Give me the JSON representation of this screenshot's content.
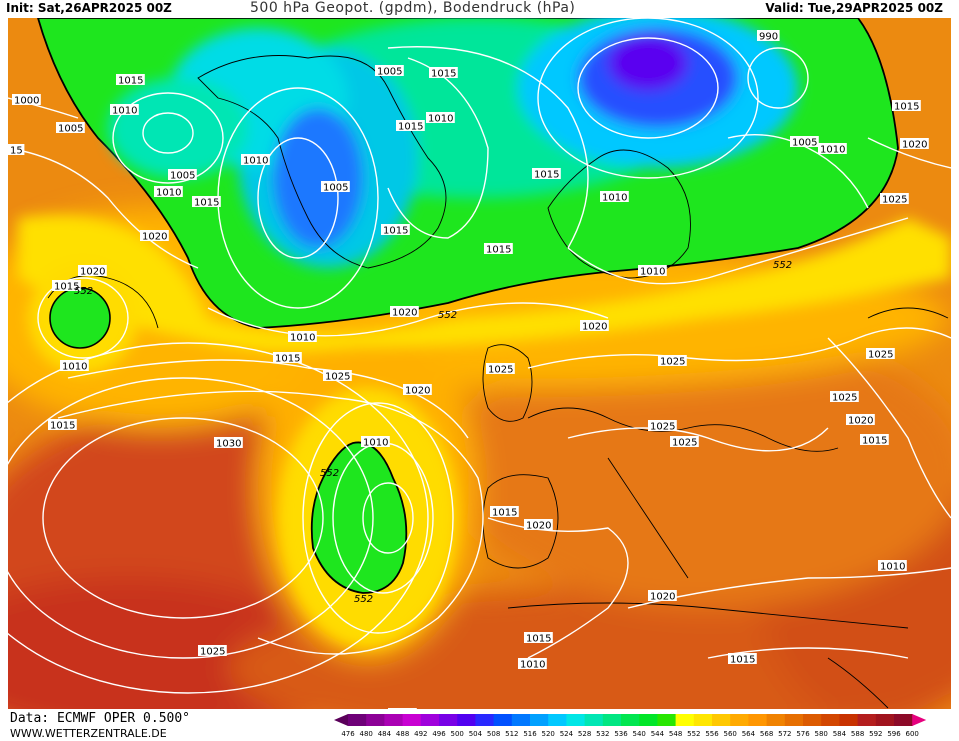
{
  "header": {
    "init": "Init: Sat,26APR2025 00Z",
    "title": "500 hPa Geopot. (gpdm), Bodendruck (hPa)",
    "valid": "Valid: Tue,29APR2025 00Z"
  },
  "footer": {
    "data_source": "Data: ECMWF OPER 0.500°",
    "website": "WWW.WETTERZENTRALE.DE"
  },
  "legend": {
    "values": [
      476,
      480,
      484,
      488,
      492,
      496,
      500,
      504,
      508,
      512,
      516,
      520,
      524,
      528,
      532,
      536,
      540,
      544,
      548,
      552,
      556,
      560,
      564,
      568,
      572,
      576,
      580,
      584,
      588,
      592,
      596,
      600
    ],
    "colors": [
      "#5a005a",
      "#6e0078",
      "#8c0096",
      "#aa00b4",
      "#c800d2",
      "#a000dc",
      "#7800e6",
      "#5000f0",
      "#2828ff",
      "#0050ff",
      "#0078ff",
      "#00a0ff",
      "#00c8ff",
      "#00e6e6",
      "#00e6b4",
      "#00e682",
      "#00e650",
      "#00e628",
      "#28e600",
      "#ffff00",
      "#ffe600",
      "#ffc800",
      "#ffaa00",
      "#ff9600",
      "#f08200",
      "#e66e00",
      "#dc5a00",
      "#d24600",
      "#c83200",
      "#b41e1e",
      "#a0141e",
      "#8c0a28",
      "#e6007e"
    ]
  },
  "isobar_labels": [
    "1000",
    "1005",
    "1010",
    "1015",
    "1020",
    "1025",
    "1030",
    "990"
  ],
  "geopot_contour_label": "552"
}
